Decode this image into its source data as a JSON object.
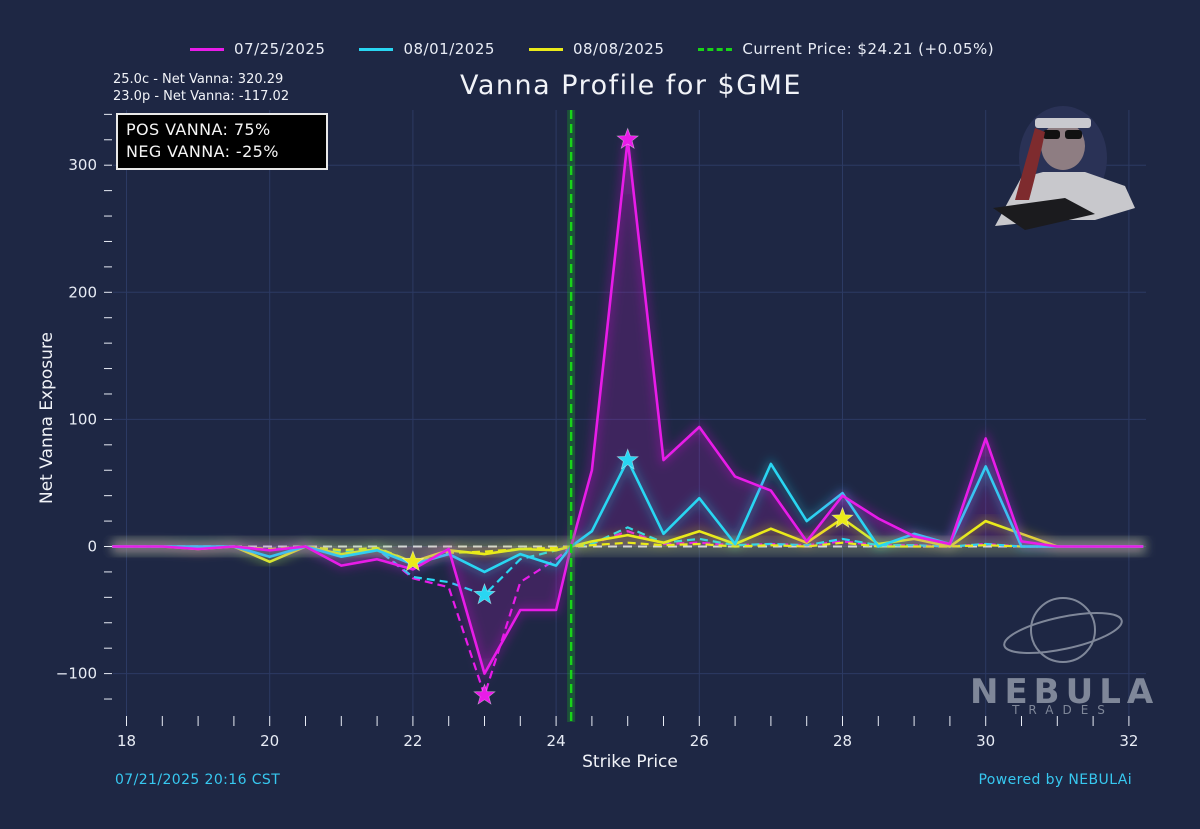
{
  "legend": {
    "items": [
      {
        "label": "07/25/2025",
        "color": "#e81ce8",
        "dashed": false
      },
      {
        "label": "08/01/2025",
        "color": "#29d6f2",
        "dashed": false
      },
      {
        "label": "08/08/2025",
        "color": "#eaea1a",
        "dashed": false
      },
      {
        "label": "Current Price: $24.21 (+0.05%)",
        "color": "#18d418",
        "dashed": true
      }
    ]
  },
  "header": {
    "title": "Vanna Profile for $GME",
    "note_call": "25.0c - Net Vanna: 320.29",
    "note_put": "23.0p - Net Vanna: -117.02"
  },
  "stats": {
    "pos_vanna": "POS VANNA: 75%",
    "neg_vanna": "NEG VANNA: -25%"
  },
  "footer": {
    "timestamp": "07/21/2025 20:16 CST",
    "powered_by": "Powered by NEBULAi",
    "brand_name": "NEBULA",
    "brand_tagline": "TRADES"
  },
  "chart_data": {
    "type": "line",
    "title": "Vanna Profile for $GME",
    "xlabel": "Strike Price",
    "ylabel": "Net Vanna Exposure",
    "xlim": [
      17.8,
      32.2
    ],
    "ylim": [
      -126,
      340
    ],
    "x_ticks": [
      18,
      20,
      22,
      24,
      26,
      28,
      30,
      32
    ],
    "y_ticks": [
      -100,
      0,
      100,
      200,
      300
    ],
    "current_price": 24.21,
    "call_series": [
      {
        "name": "07/25/2025",
        "color": "#e81ce8",
        "x": [
          17.8,
          18,
          18.5,
          19,
          19.5,
          20,
          20.5,
          21,
          21.5,
          22,
          22.5,
          23,
          23.5,
          24,
          24.21,
          24.5,
          25,
          25.5,
          26,
          26.5,
          27,
          27.5,
          28,
          28.5,
          29,
          29.5,
          30,
          30.5,
          31,
          31.5,
          32,
          32.2
        ],
        "y": [
          0,
          0,
          0,
          -2,
          0,
          -3,
          0,
          -15,
          -10,
          -18,
          -2,
          -100,
          -50,
          -50,
          0,
          60,
          320.29,
          68,
          94,
          55,
          44,
          4,
          40,
          22,
          8,
          2,
          85,
          4,
          0,
          0,
          0,
          0
        ]
      },
      {
        "name": "08/01/2025",
        "color": "#29d6f2",
        "x": [
          17.8,
          18,
          18.5,
          19,
          19.5,
          20,
          20.5,
          21,
          21.5,
          22,
          22.5,
          23,
          23.5,
          24,
          24.21,
          24.5,
          25,
          25.5,
          26,
          26.5,
          27,
          27.5,
          28,
          28.5,
          29,
          29.5,
          30,
          30.5,
          31,
          31.5,
          32,
          32.2
        ],
        "y": [
          0,
          0,
          0,
          0,
          0,
          -8,
          0,
          -8,
          -3,
          -14,
          -6,
          -20,
          -6,
          -15,
          0,
          12,
          68,
          10,
          38,
          2,
          65,
          20,
          42,
          0,
          10,
          2,
          63,
          0,
          0,
          0,
          0,
          0
        ]
      },
      {
        "name": "08/08/2025",
        "color": "#eaea1a",
        "x": [
          17.8,
          18,
          18.5,
          19,
          19.5,
          20,
          20.5,
          21,
          21.5,
          22,
          22.5,
          23,
          23.5,
          24,
          24.21,
          24.5,
          25,
          25.5,
          26,
          26.5,
          27,
          27.5,
          28,
          28.5,
          29,
          29.5,
          30,
          30.5,
          31,
          31.5,
          32,
          32.2
        ],
        "y": [
          0,
          0,
          0,
          -2,
          0,
          -12,
          0,
          -6,
          -2,
          -12,
          -3,
          -6,
          -2,
          -3,
          0,
          4,
          9,
          3,
          12,
          2,
          14,
          3,
          22,
          2,
          6,
          0,
          20,
          10,
          0,
          0,
          0,
          0
        ]
      }
    ],
    "put_series": [
      {
        "name": "07/25/2025 puts",
        "color": "#e81ce8",
        "x": [
          17.8,
          18,
          18.5,
          19,
          19.5,
          20,
          20.5,
          21,
          21.5,
          22,
          22.5,
          23,
          23.5,
          24,
          24.21,
          24.5,
          25,
          25.5,
          26,
          26.5,
          27,
          27.5,
          28,
          28.5,
          29,
          29.5,
          30,
          30.5,
          31,
          31.5,
          32,
          32.2
        ],
        "y": [
          0,
          0,
          0,
          0,
          0,
          -3,
          0,
          -6,
          -2,
          -25,
          -32,
          -117.02,
          -28,
          -10,
          0,
          2,
          12,
          2,
          3,
          1,
          2,
          1,
          4,
          1,
          1,
          0,
          2,
          0,
          0,
          0,
          0,
          0
        ]
      },
      {
        "name": "08/01/2025 puts",
        "color": "#29d6f2",
        "x": [
          17.8,
          18,
          18.5,
          19,
          19.5,
          20,
          20.5,
          21,
          21.5,
          22,
          22.5,
          23,
          23.5,
          24,
          24.21,
          24.5,
          25,
          25.5,
          26,
          26.5,
          27,
          27.5,
          28,
          28.5,
          29,
          29.5,
          30,
          30.5,
          31,
          31.5,
          32,
          32.2
        ],
        "y": [
          0,
          0,
          0,
          0,
          0,
          -2,
          0,
          -4,
          -2,
          -24,
          -28,
          -38,
          -10,
          -3,
          0,
          2,
          15,
          3,
          6,
          1,
          2,
          1,
          6,
          1,
          1,
          0,
          2,
          0,
          0,
          0,
          0,
          0
        ]
      },
      {
        "name": "08/08/2025 puts",
        "color": "#eaea1a",
        "x": [
          17.8,
          18,
          18.5,
          19,
          19.5,
          20,
          20.5,
          21,
          21.5,
          22,
          22.5,
          23,
          23.5,
          24,
          24.21,
          24.5,
          25,
          25.5,
          26,
          26.5,
          27,
          27.5,
          28,
          28.5,
          29,
          29.5,
          30,
          30.5,
          31,
          31.5,
          32,
          32.2
        ],
        "y": [
          0,
          0,
          0,
          0,
          0,
          -2,
          0,
          -3,
          -1,
          -12,
          -5,
          -4,
          -2,
          -1,
          0,
          1,
          3,
          1,
          2,
          0,
          1,
          0,
          3,
          0,
          0,
          0,
          1,
          0,
          0,
          0,
          0,
          0
        ]
      }
    ],
    "star_markers": [
      {
        "color": "#e81ce8",
        "x": 25,
        "y": 320.29
      },
      {
        "color": "#e81ce8",
        "x": 23,
        "y": -117.02
      },
      {
        "color": "#29d6f2",
        "x": 25,
        "y": 68
      },
      {
        "color": "#29d6f2",
        "x": 23,
        "y": -38
      },
      {
        "color": "#eaea1a",
        "x": 28,
        "y": 22
      },
      {
        "color": "#eaea1a",
        "x": 22,
        "y": -12
      }
    ],
    "zero_line_color": "#f2f2f2"
  }
}
